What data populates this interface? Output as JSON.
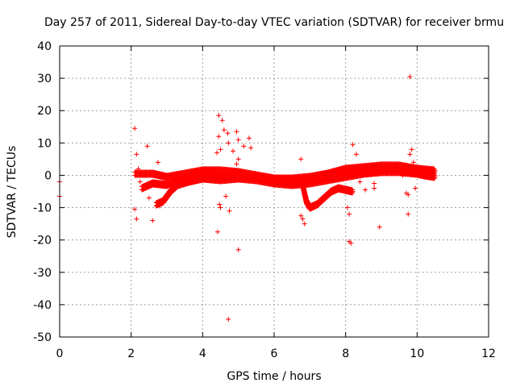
{
  "chart_data": {
    "type": "scatter",
    "title": "Day 257 of 2011, Sidereal Day-to-day VTEC variation (SDTVAR) for receiver brmu",
    "xlabel": "GPS time / hours",
    "ylabel": "SDTVAR / TECUs",
    "xlim": [
      0,
      12
    ],
    "ylim": [
      -50,
      40
    ],
    "grid": true,
    "marker": "+",
    "color": "#ff0000",
    "x_ticks": [
      0,
      2,
      4,
      6,
      8,
      10,
      12
    ],
    "y_ticks": [
      40,
      30,
      20,
      10,
      0,
      -10,
      -20,
      -30,
      -40,
      -50
    ],
    "series": [
      {
        "name": "SDTVAR",
        "dense_tracks": [
          {
            "x": [
              2.1,
              2.6,
              3.0,
              3.5,
              4.0,
              4.5,
              5.0,
              5.5,
              6.0,
              6.5,
              7.0,
              7.5,
              8.0,
              8.5,
              9.0,
              9.5,
              10.0,
              10.5
            ],
            "y": [
              0.5,
              0.5,
              -0.5,
              0.5,
              1.5,
              1.5,
              1.0,
              0.0,
              -1.0,
              -1.5,
              -1.0,
              0.5,
              2.0,
              2.5,
              3.0,
              3.0,
              2.0,
              1.0
            ]
          },
          {
            "x": [
              2.3,
              2.6,
              3.0,
              3.4,
              3.8,
              4.2,
              4.6,
              5.0,
              5.4,
              5.8,
              6.2,
              6.6,
              7.0,
              7.4,
              7.8,
              8.2,
              8.6,
              9.0,
              9.4,
              9.8,
              10.2,
              10.5
            ],
            "y": [
              -4.0,
              -2.5,
              -3.0,
              -1.0,
              0.5,
              1.0,
              0.0,
              0.5,
              -0.5,
              -1.5,
              -2.0,
              -2.5,
              -2.0,
              -1.0,
              0.0,
              1.0,
              1.5,
              2.0,
              2.0,
              1.0,
              0.0,
              -0.5
            ]
          },
          {
            "x": [
              2.7,
              2.9,
              3.1,
              3.3,
              3.6,
              4.0,
              4.5,
              5.0,
              5.5,
              6.0,
              6.5,
              7.0,
              7.5,
              8.0,
              8.5,
              9.0,
              9.5,
              10.0,
              10.5
            ],
            "y": [
              -9.0,
              -8.0,
              -5.0,
              -3.0,
              -2.0,
              -1.0,
              0.0,
              0.0,
              -0.5,
              -1.0,
              -1.0,
              -0.5,
              0.5,
              1.5,
              2.0,
              2.5,
              2.5,
              2.0,
              1.5
            ]
          },
          {
            "x": [
              6.8,
              6.9,
              7.0,
              7.2,
              7.4,
              7.6,
              7.8,
              8.0,
              8.2
            ],
            "y": [
              -3.0,
              -8.0,
              -10.0,
              -9.0,
              -7.0,
              -5.0,
              -4.0,
              -4.5,
              -5.0
            ]
          },
          {
            "x": [
              4.0,
              4.5,
              5.0,
              5.5,
              6.0,
              6.5,
              7.0,
              7.5,
              8.0,
              8.5,
              9.0,
              9.5,
              10.0,
              10.5
            ],
            "y": [
              -1.0,
              -1.5,
              -1.0,
              -1.5,
              -2.5,
              -3.0,
              -2.5,
              -1.5,
              -0.5,
              0.5,
              1.0,
              1.0,
              0.5,
              0.0
            ]
          }
        ],
        "points": [
          [
            0.0,
            -2.0
          ],
          [
            0.0,
            -6.5
          ],
          [
            2.1,
            14.5
          ],
          [
            2.15,
            6.5
          ],
          [
            2.1,
            -10.5
          ],
          [
            2.15,
            -13.5
          ],
          [
            2.2,
            2.0
          ],
          [
            2.25,
            -2.0
          ],
          [
            2.45,
            9.0
          ],
          [
            2.6,
            -14.0
          ],
          [
            2.5,
            -7.0
          ],
          [
            2.75,
            4.0
          ],
          [
            2.8,
            -9.5
          ],
          [
            4.45,
            18.5
          ],
          [
            4.55,
            17.0
          ],
          [
            4.6,
            14.0
          ],
          [
            4.45,
            12.0
          ],
          [
            4.4,
            7.0
          ],
          [
            4.5,
            8.0
          ],
          [
            4.42,
            -17.5
          ],
          [
            4.5,
            -10.0
          ],
          [
            4.47,
            -9.0
          ],
          [
            4.65,
            -6.5
          ],
          [
            4.7,
            13.0
          ],
          [
            4.72,
            10.0
          ],
          [
            4.75,
            -11.0
          ],
          [
            4.72,
            -44.5
          ],
          [
            4.95,
            13.5
          ],
          [
            5.0,
            11.0
          ],
          [
            5.0,
            5.0
          ],
          [
            4.95,
            3.5
          ],
          [
            5.15,
            9.0
          ],
          [
            5.3,
            11.5
          ],
          [
            5.35,
            8.5
          ],
          [
            5.0,
            -23.0
          ],
          [
            4.85,
            7.5
          ],
          [
            6.75,
            5.0
          ],
          [
            6.75,
            -12.5
          ],
          [
            6.8,
            -13.5
          ],
          [
            6.85,
            -15.0
          ],
          [
            6.9,
            -7.0
          ],
          [
            8.1,
            -20.5
          ],
          [
            8.15,
            -21.0
          ],
          [
            8.1,
            -12.0
          ],
          [
            8.05,
            -10.0
          ],
          [
            8.2,
            9.5
          ],
          [
            8.3,
            6.5
          ],
          [
            8.4,
            -2.0
          ],
          [
            8.55,
            -4.5
          ],
          [
            8.8,
            -2.5
          ],
          [
            8.8,
            -4.0
          ],
          [
            8.95,
            -16.0
          ],
          [
            9.75,
            -12.0
          ],
          [
            9.8,
            30.5
          ],
          [
            9.85,
            8.0
          ],
          [
            9.8,
            6.5
          ],
          [
            9.7,
            -5.5
          ],
          [
            9.75,
            -6.0
          ],
          [
            9.95,
            -4.0
          ],
          [
            9.9,
            4.0
          ],
          [
            10.05,
            1.0
          ],
          [
            9.6,
            0.0
          ]
        ]
      }
    ]
  }
}
